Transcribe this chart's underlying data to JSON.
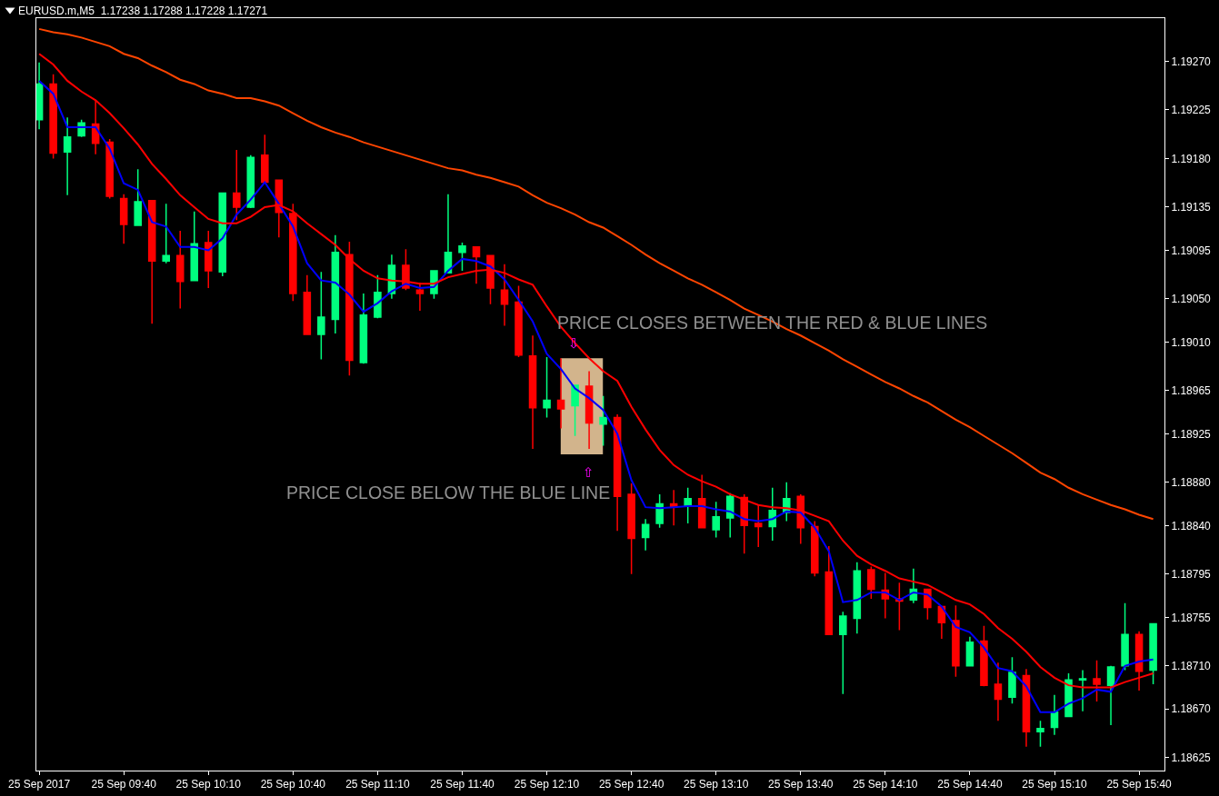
{
  "chart_data": {
    "type": "candlestick",
    "title": "EURUSD.m,M5  1.17238 1.17288 1.17228 1.17271",
    "x": [
      "2017-09-25T09:10",
      "2017-09-25T09:15",
      "2017-09-25T09:20",
      "2017-09-25T09:25",
      "2017-09-25T09:30",
      "2017-09-25T09:35",
      "2017-09-25T09:40",
      "2017-09-25T09:45",
      "2017-09-25T09:50",
      "2017-09-25T09:55",
      "2017-09-25T10:00",
      "2017-09-25T10:05",
      "2017-09-25T10:10",
      "2017-09-25T10:15",
      "2017-09-25T10:20",
      "2017-09-25T10:25",
      "2017-09-25T10:30",
      "2017-09-25T10:35",
      "2017-09-25T10:40",
      "2017-09-25T10:45",
      "2017-09-25T10:50",
      "2017-09-25T10:55",
      "2017-09-25T11:00",
      "2017-09-25T11:05",
      "2017-09-25T11:10",
      "2017-09-25T11:15",
      "2017-09-25T11:20",
      "2017-09-25T11:25",
      "2017-09-25T11:30",
      "2017-09-25T11:35",
      "2017-09-25T11:40",
      "2017-09-25T11:45",
      "2017-09-25T11:50",
      "2017-09-25T11:55",
      "2017-09-25T12:00",
      "2017-09-25T12:05",
      "2017-09-25T12:10",
      "2017-09-25T12:15",
      "2017-09-25T12:20",
      "2017-09-25T12:25",
      "2017-09-25T12:30",
      "2017-09-25T12:35",
      "2017-09-25T12:40",
      "2017-09-25T12:45",
      "2017-09-25T12:50",
      "2017-09-25T12:55",
      "2017-09-25T13:00",
      "2017-09-25T13:05",
      "2017-09-25T13:10",
      "2017-09-25T13:15",
      "2017-09-25T13:20",
      "2017-09-25T13:25",
      "2017-09-25T13:30",
      "2017-09-25T13:35",
      "2017-09-25T13:40",
      "2017-09-25T13:45",
      "2017-09-25T13:50",
      "2017-09-25T13:55",
      "2017-09-25T14:00",
      "2017-09-25T14:05",
      "2017-09-25T14:10",
      "2017-09-25T14:15",
      "2017-09-25T14:20",
      "2017-09-25T14:25",
      "2017-09-25T14:30",
      "2017-09-25T14:35",
      "2017-09-25T14:40",
      "2017-09-25T14:45",
      "2017-09-25T14:50",
      "2017-09-25T14:55",
      "2017-09-25T15:00",
      "2017-09-25T15:05",
      "2017-09-25T15:10",
      "2017-09-25T15:15",
      "2017-09-25T15:20",
      "2017-09-25T15:25",
      "2017-09-25T15:30",
      "2017-09-25T15:35",
      "2017-09-25T15:40",
      "2017-09-25T15:45"
    ],
    "ohlc": [
      [
        1.19216,
        1.19269,
        1.19207,
        1.19249
      ],
      [
        1.19249,
        1.19258,
        1.1918,
        1.19185
      ],
      [
        1.19186,
        1.19218,
        1.19146,
        1.192
      ],
      [
        1.19201,
        1.19216,
        1.192,
        1.19213
      ],
      [
        1.19212,
        1.19234,
        1.19184,
        1.19194
      ],
      [
        1.19195,
        1.19198,
        1.19143,
        1.19145
      ],
      [
        1.19143,
        1.19147,
        1.19101,
        1.19119
      ],
      [
        1.19118,
        1.1917,
        1.19118,
        1.1914
      ],
      [
        1.19141,
        1.19141,
        1.19027,
        1.19085
      ],
      [
        1.19085,
        1.19138,
        1.19083,
        1.1909
      ],
      [
        1.1909,
        1.19113,
        1.19041,
        1.19066
      ],
      [
        1.19067,
        1.19131,
        1.19067,
        1.19101
      ],
      [
        1.19102,
        1.19113,
        1.1906,
        1.19076
      ],
      [
        1.19075,
        1.19148,
        1.19071,
        1.19148
      ],
      [
        1.19148,
        1.19188,
        1.19123,
        1.19135
      ],
      [
        1.19135,
        1.19183,
        1.19134,
        1.19181
      ],
      [
        1.19183,
        1.19202,
        1.19158,
        1.19158
      ],
      [
        1.1916,
        1.1916,
        1.19107,
        1.1913
      ],
      [
        1.19129,
        1.19138,
        1.19048,
        1.19055
      ],
      [
        1.19056,
        1.19072,
        1.19017,
        1.19017
      ],
      [
        1.19017,
        1.19075,
        1.18994,
        1.19033
      ],
      [
        1.19031,
        1.19109,
        1.19018,
        1.19093
      ],
      [
        1.19091,
        1.19103,
        1.18979,
        1.18993
      ],
      [
        1.18991,
        1.19055,
        1.1899,
        1.19035
      ],
      [
        1.19033,
        1.19072,
        1.19032,
        1.19056
      ],
      [
        1.19055,
        1.19091,
        1.1905,
        1.19081
      ],
      [
        1.19081,
        1.19096,
        1.19058,
        1.1906
      ],
      [
        1.19058,
        1.19065,
        1.19039,
        1.19055
      ],
      [
        1.19055,
        1.19076,
        1.1905,
        1.19076
      ],
      [
        1.19074,
        1.19147,
        1.19074,
        1.19093
      ],
      [
        1.19093,
        1.19102,
        1.19076,
        1.19099
      ],
      [
        1.19098,
        1.19098,
        1.19064,
        1.19089
      ],
      [
        1.1909,
        1.1909,
        1.19045,
        1.1906
      ],
      [
        1.19058,
        1.19082,
        1.19025,
        1.19045
      ],
      [
        1.19047,
        1.19062,
        1.18996,
        1.18998
      ],
      [
        1.18997,
        1.19016,
        1.18911,
        1.18949
      ],
      [
        1.18949,
        1.18996,
        1.1894,
        1.18956
      ],
      [
        1.18956,
        1.18995,
        1.1893,
        1.18948
      ],
      [
        1.18951,
        1.1897,
        1.18923,
        1.1897
      ],
      [
        1.18969,
        1.18983,
        1.18911,
        1.18935
      ],
      [
        1.18934,
        1.1896,
        1.18914,
        1.1894
      ],
      [
        1.1894,
        1.18943,
        1.18835,
        1.18867
      ],
      [
        1.18869,
        1.18879,
        1.18795,
        1.18828
      ],
      [
        1.18829,
        1.18846,
        1.18817,
        1.18841
      ],
      [
        1.18842,
        1.18869,
        1.18838,
        1.1886
      ],
      [
        1.1886,
        1.18873,
        1.1884,
        1.18857
      ],
      [
        1.18858,
        1.18875,
        1.18842,
        1.18865
      ],
      [
        1.18865,
        1.18887,
        1.18838,
        1.18838
      ],
      [
        1.18836,
        1.18862,
        1.18829,
        1.18848
      ],
      [
        1.18847,
        1.1887,
        1.18829,
        1.18867
      ],
      [
        1.18866,
        1.18869,
        1.18814,
        1.1884
      ],
      [
        1.18842,
        1.18859,
        1.1882,
        1.18839
      ],
      [
        1.18839,
        1.18875,
        1.18826,
        1.18854
      ],
      [
        1.18852,
        1.1888,
        1.18844,
        1.18865
      ],
      [
        1.18867,
        1.18869,
        1.18823,
        1.18838
      ],
      [
        1.18839,
        1.18844,
        1.18793,
        1.18796
      ],
      [
        1.18797,
        1.18821,
        1.18739,
        1.18739
      ],
      [
        1.18739,
        1.1876,
        1.18684,
        1.18756
      ],
      [
        1.18754,
        1.18806,
        1.1874,
        1.18798
      ],
      [
        1.18799,
        1.18802,
        1.18772,
        1.18781
      ],
      [
        1.1878,
        1.18796,
        1.18754,
        1.18772
      ],
      [
        1.18772,
        1.18787,
        1.18743,
        1.1877
      ],
      [
        1.18771,
        1.188,
        1.18768,
        1.18781
      ],
      [
        1.18781,
        1.18781,
        1.18753,
        1.18764
      ],
      [
        1.18765,
        1.18765,
        1.18735,
        1.1875
      ],
      [
        1.18752,
        1.18766,
        1.187,
        1.1871
      ],
      [
        1.1871,
        1.18737,
        1.1871,
        1.18732
      ],
      [
        1.18733,
        1.18747,
        1.18691,
        1.18692
      ],
      [
        1.18693,
        1.18713,
        1.18659,
        1.18679
      ],
      [
        1.18681,
        1.18718,
        1.18675,
        1.18704
      ],
      [
        1.18701,
        1.18707,
        1.18635,
        1.18649
      ],
      [
        1.18649,
        1.18659,
        1.18635,
        1.18652
      ],
      [
        1.18653,
        1.18683,
        1.18646,
        1.18667
      ],
      [
        1.18663,
        1.18703,
        1.18663,
        1.18697
      ],
      [
        1.18697,
        1.18706,
        1.18668,
        1.18698
      ],
      [
        1.18698,
        1.18715,
        1.18677,
        1.18693
      ],
      [
        1.18692,
        1.1871,
        1.18655,
        1.18709
      ],
      [
        1.1871,
        1.18768,
        1.18706,
        1.18739
      ],
      [
        1.18739,
        1.18742,
        1.18687,
        1.18705
      ],
      [
        1.18706,
        1.18749,
        1.18693,
        1.18749
      ]
    ],
    "colors": [
      "#00ff7f",
      "#ff0000",
      "#00ff7f",
      "#00ff7f",
      "#ff0000",
      "#ff0000",
      "#ff0000",
      "#00ff7f",
      "#ff0000",
      "#00ff7f",
      "#ff0000",
      "#00ff7f",
      "#ff0000",
      "#00ff7f",
      "#ff0000",
      "#00ff7f",
      "#ff0000",
      "#ff0000",
      "#ff0000",
      "#ff0000",
      "#00ff7f",
      "#00ff7f",
      "#ff0000",
      "#00ff7f",
      "#00ff7f",
      "#00ff7f",
      "#ff0000",
      "#ff0000",
      "#00ff7f",
      "#00ff7f",
      "#00ff7f",
      "#ff0000",
      "#ff0000",
      "#ff0000",
      "#ff0000",
      "#ff0000",
      "#00ff7f",
      "#ff0000",
      "#00ff7f",
      "#ff0000",
      "#00ff7f",
      "#ff0000",
      "#ff0000",
      "#00ff7f",
      "#00ff7f",
      "#ff0000",
      "#00ff7f",
      "#ff0000",
      "#00ff7f",
      "#00ff7f",
      "#ff0000",
      "#ff0000",
      "#00ff7f",
      "#00ff7f",
      "#ff0000",
      "#ff0000",
      "#ff0000",
      "#00ff7f",
      "#00ff7f",
      "#ff0000",
      "#ff0000",
      "#ff0000",
      "#00ff7f",
      "#ff0000",
      "#ff0000",
      "#ff0000",
      "#00ff7f",
      "#ff0000",
      "#ff0000",
      "#00ff7f",
      "#ff0000",
      "#00ff7f",
      "#00ff7f",
      "#00ff7f",
      "#00ff7f",
      "#ff0000",
      "#00ff7f",
      "#00ff7f",
      "#ff0000",
      "#00ff7f"
    ],
    "series": [
      {
        "type": "line",
        "color": "#0000ff",
        "values": [
          1.19252,
          1.1924,
          1.19209,
          1.19209,
          1.19209,
          1.19189,
          1.19157,
          1.19151,
          1.19121,
          1.19117,
          1.19098,
          1.19098,
          1.19095,
          1.19106,
          1.19128,
          1.19142,
          1.19158,
          1.19138,
          1.19117,
          1.19083,
          1.19067,
          1.19065,
          1.19054,
          1.19038,
          1.19046,
          1.19057,
          1.19064,
          1.1906,
          1.19061,
          1.19076,
          1.19087,
          1.19085,
          1.1908,
          1.19068,
          1.19049,
          1.19029,
          1.18999,
          1.18985,
          1.18967,
          1.18958,
          1.18947,
          1.18925,
          1.18882,
          1.18857,
          1.18856,
          1.18857,
          1.18858,
          1.18858,
          1.18855,
          1.18853,
          1.18846,
          1.18844,
          1.18846,
          1.18853,
          1.18852,
          1.18838,
          1.18816,
          1.18769,
          1.18771,
          1.18778,
          1.18778,
          1.18771,
          1.18778,
          1.18776,
          1.18765,
          1.18746,
          1.18741,
          1.18727,
          1.18708,
          1.18705,
          1.18691,
          1.18667,
          1.18667,
          1.18675,
          1.1868,
          1.18688,
          1.18686,
          1.1871,
          1.18714,
          1.18716
        ]
      },
      {
        "type": "line",
        "color": "#ff0000",
        "values": [
          1.19277,
          1.19267,
          1.19252,
          1.19242,
          1.19234,
          1.19222,
          1.19208,
          1.19193,
          1.19175,
          1.19161,
          1.19146,
          1.19135,
          1.19124,
          1.1912,
          1.1912,
          1.19126,
          1.19135,
          1.19137,
          1.19131,
          1.1912,
          1.1911,
          1.191,
          1.19087,
          1.19076,
          1.19069,
          1.19067,
          1.19066,
          1.19064,
          1.19064,
          1.1907,
          1.19073,
          1.19076,
          1.19077,
          1.19074,
          1.19068,
          1.19063,
          1.19043,
          1.19024,
          1.19009,
          1.18995,
          1.18983,
          1.18974,
          1.1895,
          1.18929,
          1.1891,
          1.18896,
          1.18887,
          1.18881,
          1.18876,
          1.18869,
          1.18864,
          1.18859,
          1.18857,
          1.18856,
          1.18854,
          1.18849,
          1.18844,
          1.18826,
          1.18812,
          1.18804,
          1.18798,
          1.18791,
          1.18788,
          1.18785,
          1.18778,
          1.18771,
          1.18767,
          1.18758,
          1.18745,
          1.18735,
          1.18723,
          1.18709,
          1.18699,
          1.18692,
          1.1869,
          1.1869,
          1.1869,
          1.18695,
          1.18699,
          1.18703
        ]
      },
      {
        "type": "line",
        "color": "#ff4500",
        "values": [
          1.193,
          1.19297,
          1.19295,
          1.19292,
          1.19288,
          1.19284,
          1.19277,
          1.19273,
          1.19266,
          1.1926,
          1.19253,
          1.19249,
          1.19243,
          1.1924,
          1.19236,
          1.19236,
          1.19233,
          1.19229,
          1.19222,
          1.19215,
          1.19209,
          1.19204,
          1.192,
          1.19195,
          1.19191,
          1.19187,
          1.19183,
          1.19179,
          1.19175,
          1.19171,
          1.19169,
          1.19165,
          1.19162,
          1.19158,
          1.19154,
          1.19146,
          1.19139,
          1.19134,
          1.19128,
          1.19121,
          1.19116,
          1.19108,
          1.191,
          1.19091,
          1.19083,
          1.19076,
          1.19069,
          1.19063,
          1.19056,
          1.19049,
          1.19041,
          1.19035,
          1.19029,
          1.19022,
          1.19016,
          1.19009,
          1.19002,
          1.18994,
          1.18987,
          1.1898,
          1.18973,
          1.18967,
          1.1896,
          1.18954,
          1.18946,
          1.18938,
          1.18931,
          1.18923,
          1.18915,
          1.18907,
          1.18898,
          1.18889,
          1.18883,
          1.18875,
          1.18869,
          1.18864,
          1.18859,
          1.18855,
          1.1885,
          1.18846
        ]
      }
    ],
    "xlim": [
      "2017-09-25T09:09",
      "2017-09-25T15:49"
    ],
    "xticks": [
      {
        "value": "2017-09-25T09:10",
        "label": "25 Sep 2017"
      },
      {
        "value": "2017-09-25T09:40",
        "label": "25 Sep 09:40"
      },
      {
        "value": "2017-09-25T10:10",
        "label": "25 Sep 10:10"
      },
      {
        "value": "2017-09-25T10:40",
        "label": "25 Sep 10:40"
      },
      {
        "value": "2017-09-25T11:10",
        "label": "25 Sep 11:10"
      },
      {
        "value": "2017-09-25T11:40",
        "label": "25 Sep 11:40"
      },
      {
        "value": "2017-09-25T12:10",
        "label": "25 Sep 12:10"
      },
      {
        "value": "2017-09-25T12:40",
        "label": "25 Sep 12:40"
      },
      {
        "value": "2017-09-25T13:10",
        "label": "25 Sep 13:10"
      },
      {
        "value": "2017-09-25T13:40",
        "label": "25 Sep 13:40"
      },
      {
        "value": "2017-09-25T14:10",
        "label": "25 Sep 14:10"
      },
      {
        "value": "2017-09-25T14:40",
        "label": "25 Sep 14:40"
      },
      {
        "value": "2017-09-25T15:10",
        "label": "25 Sep 15:10"
      },
      {
        "value": "2017-09-25T15:40",
        "label": "25 Sep 15:40"
      }
    ],
    "ylim": [
      1.18613,
      1.1931
    ],
    "yticks": [
      1.18625,
      {
        "value": 1.1867,
        "label": "1.18670"
      },
      {
        "value": 1.1871,
        "label": "1.18710"
      },
      1.18755,
      1.18795,
      {
        "value": 1.1884,
        "label": "1.18840"
      },
      {
        "value": 1.1888,
        "label": "1.18880"
      },
      1.18925,
      1.18965,
      {
        "value": 1.1901,
        "label": "1.19010"
      },
      {
        "value": 1.1905,
        "label": "1.19050"
      },
      1.19095,
      1.19135,
      {
        "value": 1.1918,
        "label": "1.19180"
      },
      1.19225,
      {
        "value": 1.1927,
        "label": "1.19270"
      }
    ],
    "annotations": [
      "PRICE CLOSES BETWEEN THE RED & BLUE LINES",
      "PRICE CLOSE BELOW THE BLUE LINE",
      "⇩",
      "⇧"
    ]
  }
}
